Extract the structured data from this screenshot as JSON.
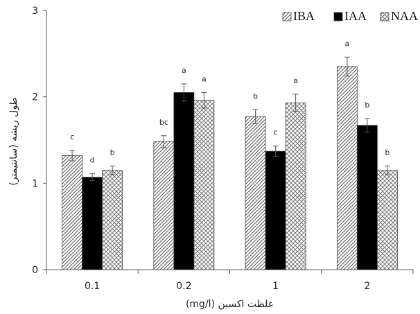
{
  "chart_data": {
    "type": "bar",
    "title": "",
    "xlabel": "غلظت اکسین (mg/l)",
    "ylabel": "طول ریشه (سانتیمتر)",
    "categories": [
      "0.1",
      "0.2",
      "1",
      "2"
    ],
    "ylim": [
      0,
      3
    ],
    "yticks": [
      "0",
      "1",
      "2",
      "3"
    ],
    "grid": false,
    "legend_position": "top-right",
    "series": [
      {
        "name": "IBA",
        "pattern": "diagonal-hatch",
        "values": [
          1.32,
          1.48,
          1.77,
          2.35
        ],
        "errors": [
          0.06,
          0.07,
          0.08,
          0.11
        ],
        "labels": [
          "c",
          "bc",
          "b",
          "a"
        ]
      },
      {
        "name": "IAA",
        "pattern": "solid",
        "values": [
          1.07,
          2.05,
          1.37,
          1.67
        ],
        "errors": [
          0.04,
          0.1,
          0.06,
          0.08
        ],
        "labels": [
          "d",
          "a",
          "c",
          "b"
        ]
      },
      {
        "name": "NAA",
        "pattern": "crosshatch",
        "values": [
          1.15,
          1.96,
          1.93,
          1.15
        ],
        "errors": [
          0.05,
          0.09,
          0.1,
          0.05
        ],
        "labels": [
          "b",
          "a",
          "a",
          "b"
        ]
      }
    ]
  },
  "colors": {
    "bar_fill_solid": "#000000",
    "hatch_stroke": "#555555",
    "axis": "#555555"
  }
}
